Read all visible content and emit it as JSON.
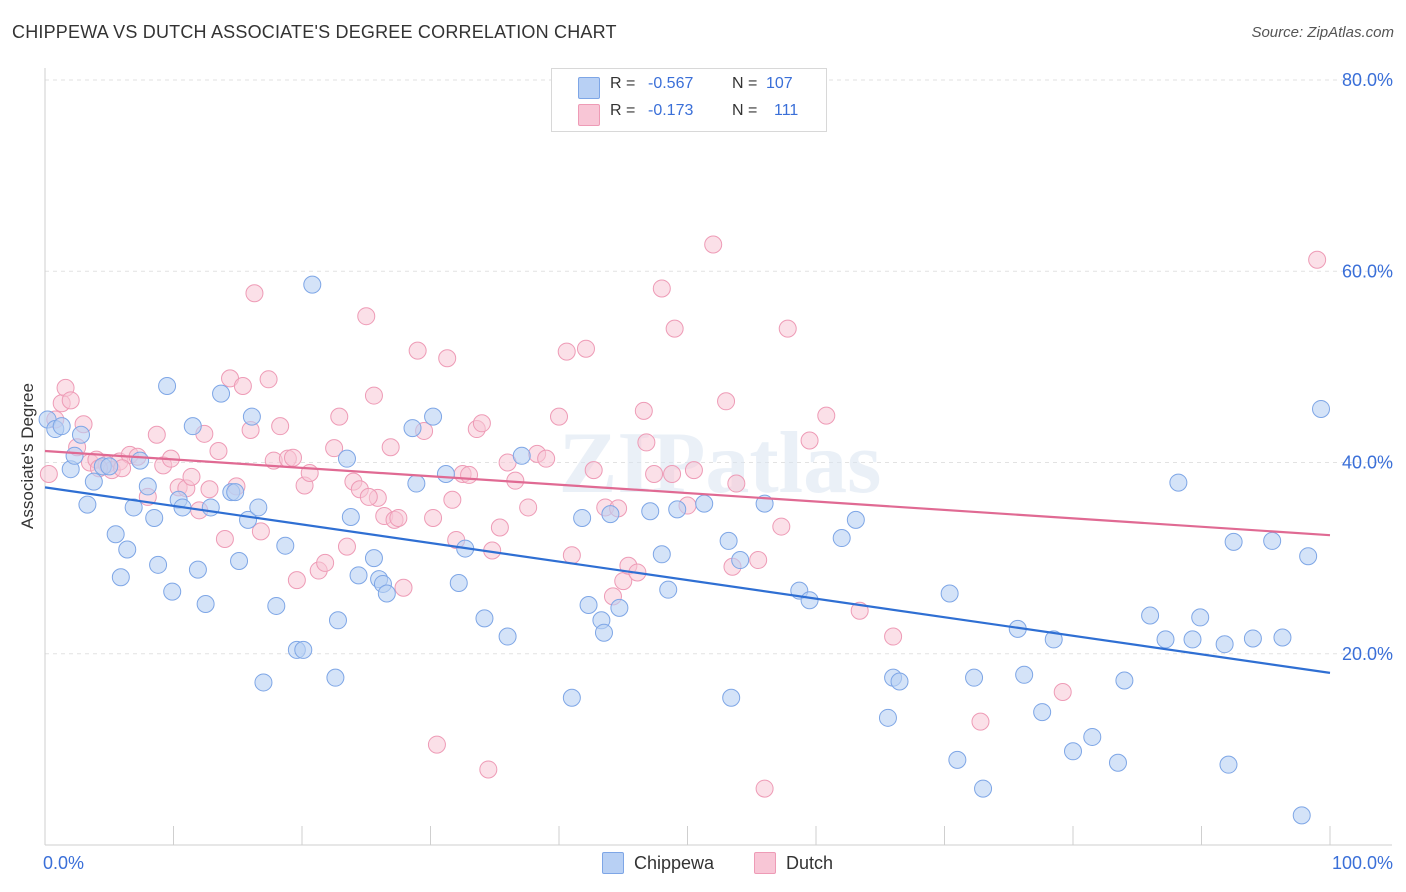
{
  "title": "CHIPPEWA VS DUTCH ASSOCIATE'S DEGREE CORRELATION CHART",
  "source": "Source: ZipAtlas.com",
  "watermark": "ZIPatlas",
  "legend": {
    "rows": [
      {
        "r_label": "R =",
        "r_value": "-0.567",
        "n_label": "N =",
        "n_value": "107"
      },
      {
        "r_label": "R =",
        "r_value": "-0.173",
        "n_label": "N =",
        "n_value": "111"
      }
    ]
  },
  "bottom_legend": [
    "Chippewa",
    "Dutch"
  ],
  "colors": {
    "chippewa_fill": "#b8d0f4",
    "chippewa_stroke": "#7ea6e6",
    "chippewa_line": "#2f6fd3",
    "dutch_fill": "#f8c6d6",
    "dutch_stroke": "#ee9bb6",
    "dutch_line": "#e06a93",
    "axis_text": "#3a6fd8"
  },
  "chart_data": {
    "type": "scatter",
    "title": "CHIPPEWA VS DUTCH ASSOCIATE'S DEGREE CORRELATION CHART",
    "xlabel": "",
    "ylabel": "Associate's Degree",
    "xlim": [
      0,
      100
    ],
    "ylim": [
      0,
      80
    ],
    "x_tick_labels": [
      "0.0%",
      "100.0%"
    ],
    "y_ticks": [
      20,
      40,
      60,
      80
    ],
    "y_tick_labels": [
      "20.0%",
      "40.0%",
      "60.0%",
      "80.0%"
    ],
    "grid": true,
    "legend_position": "top-center",
    "series": [
      {
        "name": "Chippewa",
        "r": -0.567,
        "n": 107,
        "trend": [
          [
            0,
            37.4
          ],
          [
            100,
            18.0
          ]
        ],
        "points": [
          [
            0.2,
            44.5
          ],
          [
            0.8,
            43.5
          ],
          [
            1.3,
            43.8
          ],
          [
            2.0,
            39.3
          ],
          [
            2.3,
            40.7
          ],
          [
            2.8,
            42.9
          ],
          [
            3.3,
            35.6
          ],
          [
            3.8,
            38.0
          ],
          [
            4.5,
            39.6
          ],
          [
            5.0,
            39.6
          ],
          [
            5.5,
            32.5
          ],
          [
            5.9,
            28.0
          ],
          [
            6.4,
            30.9
          ],
          [
            6.9,
            35.3
          ],
          [
            7.4,
            40.2
          ],
          [
            8.0,
            37.5
          ],
          [
            8.5,
            34.2
          ],
          [
            8.8,
            29.3
          ],
          [
            9.5,
            48.0
          ],
          [
            9.9,
            26.5
          ],
          [
            10.4,
            36.1
          ],
          [
            10.7,
            35.3
          ],
          [
            11.5,
            43.8
          ],
          [
            11.9,
            28.8
          ],
          [
            12.5,
            25.2
          ],
          [
            12.9,
            35.3
          ],
          [
            13.7,
            47.2
          ],
          [
            14.5,
            36.9
          ],
          [
            14.8,
            36.9
          ],
          [
            15.1,
            29.7
          ],
          [
            15.8,
            34.0
          ],
          [
            16.1,
            44.8
          ],
          [
            16.6,
            35.3
          ],
          [
            17.0,
            17.0
          ],
          [
            18.0,
            25.0
          ],
          [
            18.7,
            31.3
          ],
          [
            19.6,
            20.4
          ],
          [
            20.1,
            20.4
          ],
          [
            20.8,
            58.6
          ],
          [
            22.6,
            17.5
          ],
          [
            22.8,
            23.5
          ],
          [
            23.5,
            40.4
          ],
          [
            23.8,
            34.3
          ],
          [
            24.4,
            28.2
          ],
          [
            25.6,
            30.0
          ],
          [
            26.0,
            27.8
          ],
          [
            26.3,
            27.3
          ],
          [
            26.6,
            26.3
          ],
          [
            28.6,
            43.6
          ],
          [
            28.9,
            37.8
          ],
          [
            30.2,
            44.8
          ],
          [
            31.2,
            38.8
          ],
          [
            32.2,
            27.4
          ],
          [
            32.7,
            31.0
          ],
          [
            34.2,
            23.7
          ],
          [
            36.0,
            21.8
          ],
          [
            37.1,
            40.7
          ],
          [
            41.0,
            15.4
          ],
          [
            41.8,
            34.2
          ],
          [
            42.3,
            25.1
          ],
          [
            43.3,
            23.5
          ],
          [
            43.5,
            22.2
          ],
          [
            44.0,
            34.6
          ],
          [
            44.7,
            24.8
          ],
          [
            47.1,
            34.9
          ],
          [
            48.0,
            30.4
          ],
          [
            48.5,
            26.7
          ],
          [
            49.2,
            35.1
          ],
          [
            51.3,
            35.7
          ],
          [
            53.2,
            31.8
          ],
          [
            53.4,
            15.4
          ],
          [
            54.1,
            29.8
          ],
          [
            56.0,
            35.7
          ],
          [
            58.7,
            26.6
          ],
          [
            59.5,
            25.6
          ],
          [
            62.0,
            32.1
          ],
          [
            63.1,
            34.0
          ],
          [
            65.6,
            13.3
          ],
          [
            66.0,
            17.5
          ],
          [
            66.5,
            17.1
          ],
          [
            70.4,
            26.3
          ],
          [
            71.0,
            8.9
          ],
          [
            72.3,
            17.5
          ],
          [
            73.0,
            5.9
          ],
          [
            75.7,
            22.6
          ],
          [
            76.2,
            17.8
          ],
          [
            77.6,
            13.9
          ],
          [
            78.5,
            21.5
          ],
          [
            80.0,
            9.8
          ],
          [
            81.5,
            11.3
          ],
          [
            84.0,
            17.2
          ],
          [
            83.5,
            8.6
          ],
          [
            86.0,
            24.0
          ],
          [
            87.2,
            21.5
          ],
          [
            88.2,
            37.9
          ],
          [
            89.3,
            21.5
          ],
          [
            89.9,
            23.8
          ],
          [
            91.8,
            21.0
          ],
          [
            92.1,
            8.4
          ],
          [
            92.5,
            31.7
          ],
          [
            94.0,
            21.6
          ],
          [
            95.5,
            31.8
          ],
          [
            96.3,
            21.7
          ],
          [
            97.8,
            3.1
          ],
          [
            98.3,
            30.2
          ],
          [
            99.3,
            45.6
          ]
        ]
      },
      {
        "name": "Dutch",
        "r": -0.173,
        "n": 111,
        "trend": [
          [
            0,
            41.2
          ],
          [
            100,
            32.4
          ]
        ],
        "points": [
          [
            0.3,
            38.8
          ],
          [
            0.8,
            44.5
          ],
          [
            1.3,
            46.2
          ],
          [
            1.6,
            47.8
          ],
          [
            2.0,
            46.5
          ],
          [
            2.5,
            41.6
          ],
          [
            3.0,
            44.0
          ],
          [
            3.5,
            40.0
          ],
          [
            4.0,
            40.3
          ],
          [
            4.8,
            39.8
          ],
          [
            5.2,
            39.2
          ],
          [
            5.8,
            40.1
          ],
          [
            6.6,
            40.8
          ],
          [
            7.2,
            40.6
          ],
          [
            8.0,
            36.4
          ],
          [
            8.7,
            42.9
          ],
          [
            9.2,
            39.7
          ],
          [
            9.8,
            40.4
          ],
          [
            10.4,
            37.4
          ],
          [
            11.0,
            37.3
          ],
          [
            11.4,
            38.5
          ],
          [
            12.0,
            35.0
          ],
          [
            12.4,
            43.0
          ],
          [
            12.8,
            37.2
          ],
          [
            13.5,
            41.2
          ],
          [
            14.0,
            32.0
          ],
          [
            14.4,
            48.8
          ],
          [
            14.9,
            37.5
          ],
          [
            15.4,
            48.0
          ],
          [
            16.0,
            43.4
          ],
          [
            16.3,
            57.7
          ],
          [
            16.8,
            32.8
          ],
          [
            17.4,
            48.7
          ],
          [
            17.8,
            40.2
          ],
          [
            18.3,
            43.8
          ],
          [
            18.9,
            40.4
          ],
          [
            19.3,
            40.5
          ],
          [
            19.6,
            27.7
          ],
          [
            20.2,
            37.6
          ],
          [
            20.6,
            38.9
          ],
          [
            21.3,
            28.7
          ],
          [
            21.8,
            29.5
          ],
          [
            22.5,
            41.5
          ],
          [
            22.9,
            44.8
          ],
          [
            23.5,
            31.2
          ],
          [
            24.0,
            38.0
          ],
          [
            24.5,
            37.2
          ],
          [
            25.0,
            55.3
          ],
          [
            25.6,
            47.0
          ],
          [
            25.9,
            36.3
          ],
          [
            26.4,
            34.4
          ],
          [
            26.9,
            41.6
          ],
          [
            27.2,
            34.0
          ],
          [
            27.5,
            34.2
          ],
          [
            27.9,
            26.9
          ],
          [
            29.0,
            51.7
          ],
          [
            29.5,
            43.3
          ],
          [
            30.2,
            34.2
          ],
          [
            30.5,
            10.5
          ],
          [
            31.3,
            50.9
          ],
          [
            31.7,
            36.1
          ],
          [
            32.0,
            31.9
          ],
          [
            32.5,
            38.8
          ],
          [
            33.0,
            38.7
          ],
          [
            33.6,
            43.5
          ],
          [
            34.0,
            44.1
          ],
          [
            34.5,
            7.9
          ],
          [
            34.8,
            30.8
          ],
          [
            35.4,
            33.2
          ],
          [
            36.0,
            40.0
          ],
          [
            36.6,
            38.1
          ],
          [
            37.6,
            35.3
          ],
          [
            38.3,
            40.9
          ],
          [
            39.0,
            40.4
          ],
          [
            40.0,
            44.8
          ],
          [
            40.6,
            51.6
          ],
          [
            41.0,
            30.3
          ],
          [
            42.1,
            51.9
          ],
          [
            42.7,
            39.2
          ],
          [
            43.6,
            35.3
          ],
          [
            44.2,
            26.0
          ],
          [
            45.0,
            27.6
          ],
          [
            45.4,
            29.2
          ],
          [
            46.1,
            28.5
          ],
          [
            46.6,
            45.4
          ],
          [
            46.8,
            42.1
          ],
          [
            47.4,
            38.8
          ],
          [
            48.0,
            58.2
          ],
          [
            48.8,
            38.8
          ],
          [
            49.0,
            54.0
          ],
          [
            50.5,
            39.2
          ],
          [
            50.0,
            35.5
          ],
          [
            52.0,
            62.8
          ],
          [
            53.0,
            46.4
          ],
          [
            53.5,
            29.1
          ],
          [
            53.8,
            37.8
          ],
          [
            55.5,
            29.8
          ],
          [
            56.0,
            5.9
          ],
          [
            57.3,
            33.3
          ],
          [
            57.8,
            54.0
          ],
          [
            59.5,
            42.3
          ],
          [
            60.8,
            44.9
          ],
          [
            63.4,
            24.5
          ],
          [
            66.0,
            21.8
          ],
          [
            72.8,
            12.9
          ],
          [
            79.2,
            16.0
          ],
          [
            99.0,
            61.2
          ],
          [
            4.2,
            39.4
          ],
          [
            6.0,
            39.4
          ],
          [
            25.2,
            36.4
          ],
          [
            44.6,
            35.2
          ]
        ]
      }
    ]
  }
}
